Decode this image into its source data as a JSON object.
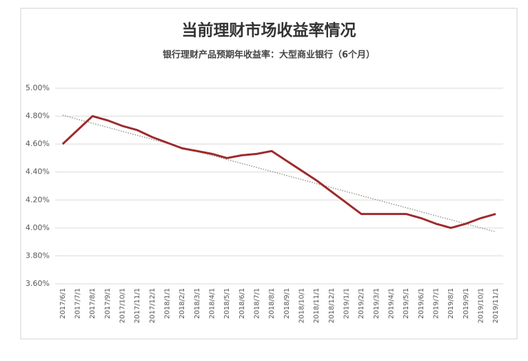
{
  "chart_data": {
    "type": "line",
    "title": "当前理财市场收益率情况",
    "subtitle": "银行理财产品预期年收益率：大型商业银行（6个月）",
    "categories": [
      "2017/6/1",
      "2017/7/1",
      "2017/8/1",
      "2017/9/1",
      "2017/10/1",
      "2017/11/1",
      "2017/12/1",
      "2018/1/1",
      "2018/2/1",
      "2018/3/1",
      "2018/4/1",
      "2018/5/1",
      "2018/6/1",
      "2018/7/1",
      "2018/8/1",
      "2018/9/1",
      "2018/10/1",
      "2018/11/1",
      "2018/12/1",
      "2019/1/1",
      "2019/2/1",
      "2019/3/1",
      "2019/4/1",
      "2019/5/1",
      "2019/6/1",
      "2019/7/1",
      "2019/8/1",
      "2019/9/1",
      "2019/10/1",
      "2019/11/1"
    ],
    "values": [
      4.6,
      4.7,
      4.8,
      4.77,
      4.73,
      4.7,
      4.65,
      4.61,
      4.57,
      4.55,
      4.53,
      4.5,
      4.52,
      4.53,
      4.55,
      4.48,
      4.41,
      4.34,
      4.26,
      4.18,
      4.1,
      4.1,
      4.1,
      4.1,
      4.07,
      4.03,
      4.0,
      4.03,
      4.07,
      4.1
    ],
    "color": "#9e2a2b",
    "trendline": {
      "color": "#8a9a8a",
      "style": "dotted"
    },
    "ylim": [
      3.6,
      5.0
    ],
    "yticks": [
      {
        "value": 3.6,
        "label": "3.60%"
      },
      {
        "value": 3.8,
        "label": "3.80%"
      },
      {
        "value": 4.0,
        "label": "4.00%"
      },
      {
        "value": 4.2,
        "label": "4.20%"
      },
      {
        "value": 4.4,
        "label": "4.40%"
      },
      {
        "value": 4.6,
        "label": "4.60%"
      },
      {
        "value": 4.8,
        "label": "4.80%"
      },
      {
        "value": 5.0,
        "label": "5.00%"
      }
    ],
    "grid": true
  }
}
